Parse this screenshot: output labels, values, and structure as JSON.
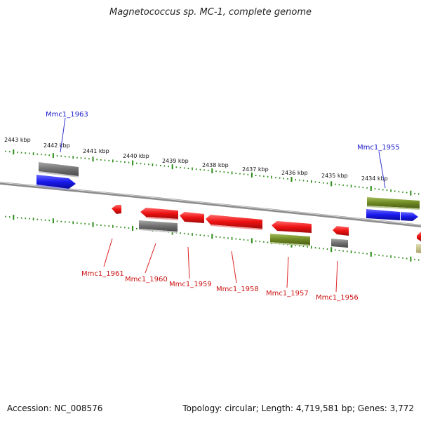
{
  "title": "Magnetococcus sp. MC-1, complete genome",
  "footer": {
    "accession": "Accession: NC_008576",
    "summary": "Topology: circular; Length: 4,719,581 bp; Genes: 3,772"
  },
  "colors": {
    "forward_cds": "#1a1aee",
    "reverse_cds": "#ee1111",
    "gray_feature": "#707070",
    "olive_feature": "#6f8a23",
    "khaki_feature": "#bdbb7f",
    "tick_green": "#2a8a16",
    "backbone": "#8c8c8c"
  },
  "ruler_labels": [
    "2443 kbp",
    "2442 kbp",
    "2441 kbp",
    "2440 kbp",
    "2439 kbp",
    "2438 kbp",
    "2437 kbp",
    "2436 kbp",
    "2435 kbp",
    "2434 kbp"
  ],
  "top_labels": [
    {
      "id": "Mmc1_1963",
      "text": "Mmc1_1963"
    },
    {
      "id": "Mmc1_1955",
      "text": "Mmc1_1955"
    }
  ],
  "bottom_labels": [
    {
      "id": "Mmc1_1961",
      "text": "Mmc1_1961"
    },
    {
      "id": "Mmc1_1960",
      "text": "Mmc1_1960"
    },
    {
      "id": "Mmc1_1959",
      "text": "Mmc1_1959"
    },
    {
      "id": "Mmc1_1958",
      "text": "Mmc1_1958"
    },
    {
      "id": "Mmc1_1957",
      "text": "Mmc1_1957"
    },
    {
      "id": "Mmc1_1956",
      "text": "Mmc1_1956"
    }
  ]
}
